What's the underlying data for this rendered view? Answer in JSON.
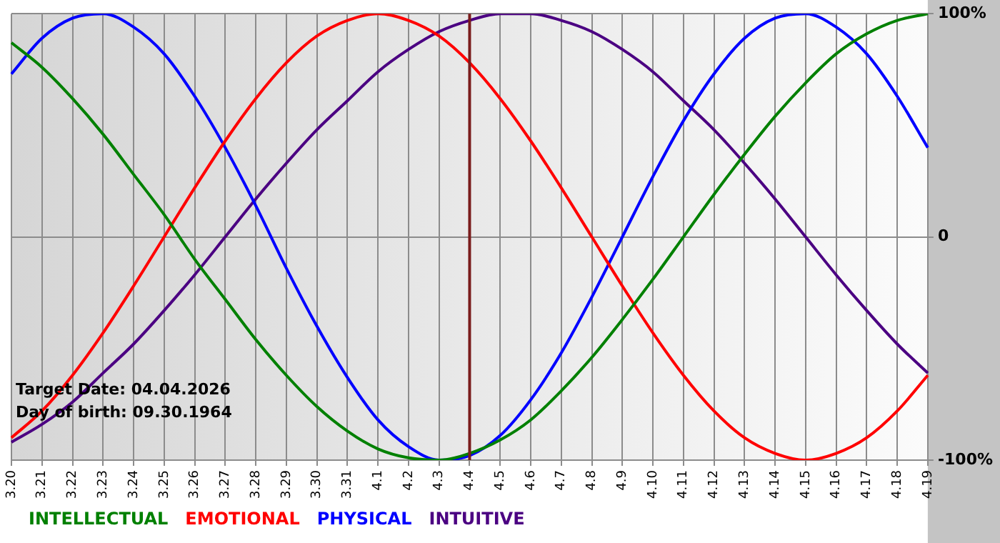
{
  "chart_data": {
    "type": "line",
    "categories": [
      "3.20",
      "3.21",
      "3.22",
      "3.23",
      "3.24",
      "3.25",
      "3.26",
      "3.27",
      "3.28",
      "3.29",
      "3.30",
      "3.31",
      "4.1",
      "4.2",
      "4.3",
      "4.4",
      "4.5",
      "4.6",
      "4.7",
      "4.8",
      "4.9",
      "4.10",
      "4.11",
      "4.12",
      "4.13",
      "4.14",
      "4.15",
      "4.16",
      "4.17",
      "4.18",
      "4.19"
    ],
    "series": [
      {
        "name": "INTELLECTUAL",
        "color": "#008000",
        "values": [
          87,
          76,
          62,
          46,
          28,
          10,
          -10,
          -28,
          -46,
          -62,
          -76,
          -87,
          -95,
          -99,
          -100,
          -97,
          -91,
          -82,
          -69,
          -54,
          -37,
          -19,
          0,
          19,
          37,
          54,
          69,
          82,
          91,
          97,
          100
        ]
      },
      {
        "name": "EMOTIONAL",
        "color": "#ff0000",
        "values": [
          -90,
          -78,
          -62,
          -43,
          -22,
          0,
          22,
          43,
          62,
          78,
          90,
          97,
          100,
          97,
          90,
          78,
          62,
          43,
          22,
          0,
          -22,
          -43,
          -62,
          -78,
          -90,
          -97,
          -100,
          -97,
          -90,
          -78,
          -62
        ]
      },
      {
        "name": "PHYSICAL",
        "color": "#0000ff",
        "values": [
          73,
          89,
          98,
          100,
          94,
          82,
          63,
          40,
          14,
          -14,
          -40,
          -63,
          -82,
          -94,
          -100,
          -98,
          -89,
          -73,
          -52,
          -27,
          0,
          27,
          52,
          73,
          89,
          98,
          100,
          94,
          82,
          63,
          40
        ]
      },
      {
        "name": "INTUITIVE",
        "color": "#4b0082",
        "values": [
          -92,
          -84,
          -74,
          -61,
          -48,
          -33,
          -17,
          0,
          17,
          33,
          48,
          61,
          74,
          84,
          92,
          97,
          100,
          100,
          97,
          92,
          84,
          74,
          61,
          48,
          33,
          17,
          0,
          -17,
          -33,
          -48,
          -61
        ]
      }
    ],
    "ylim": [
      -100,
      100
    ],
    "yticks": [
      {
        "value": -100,
        "label": "-100%"
      },
      0,
      {
        "value": 100,
        "label": "100%"
      }
    ],
    "grid": true,
    "legend": "bottom",
    "marker": "none",
    "ref_lines": [
      {
        "axis": "x",
        "value": "4.4",
        "color": "#7a1c1c"
      }
    ],
    "annotations": [
      "Target Date: 04.04.2026",
      "Day of birth: 09.30.1964"
    ]
  }
}
